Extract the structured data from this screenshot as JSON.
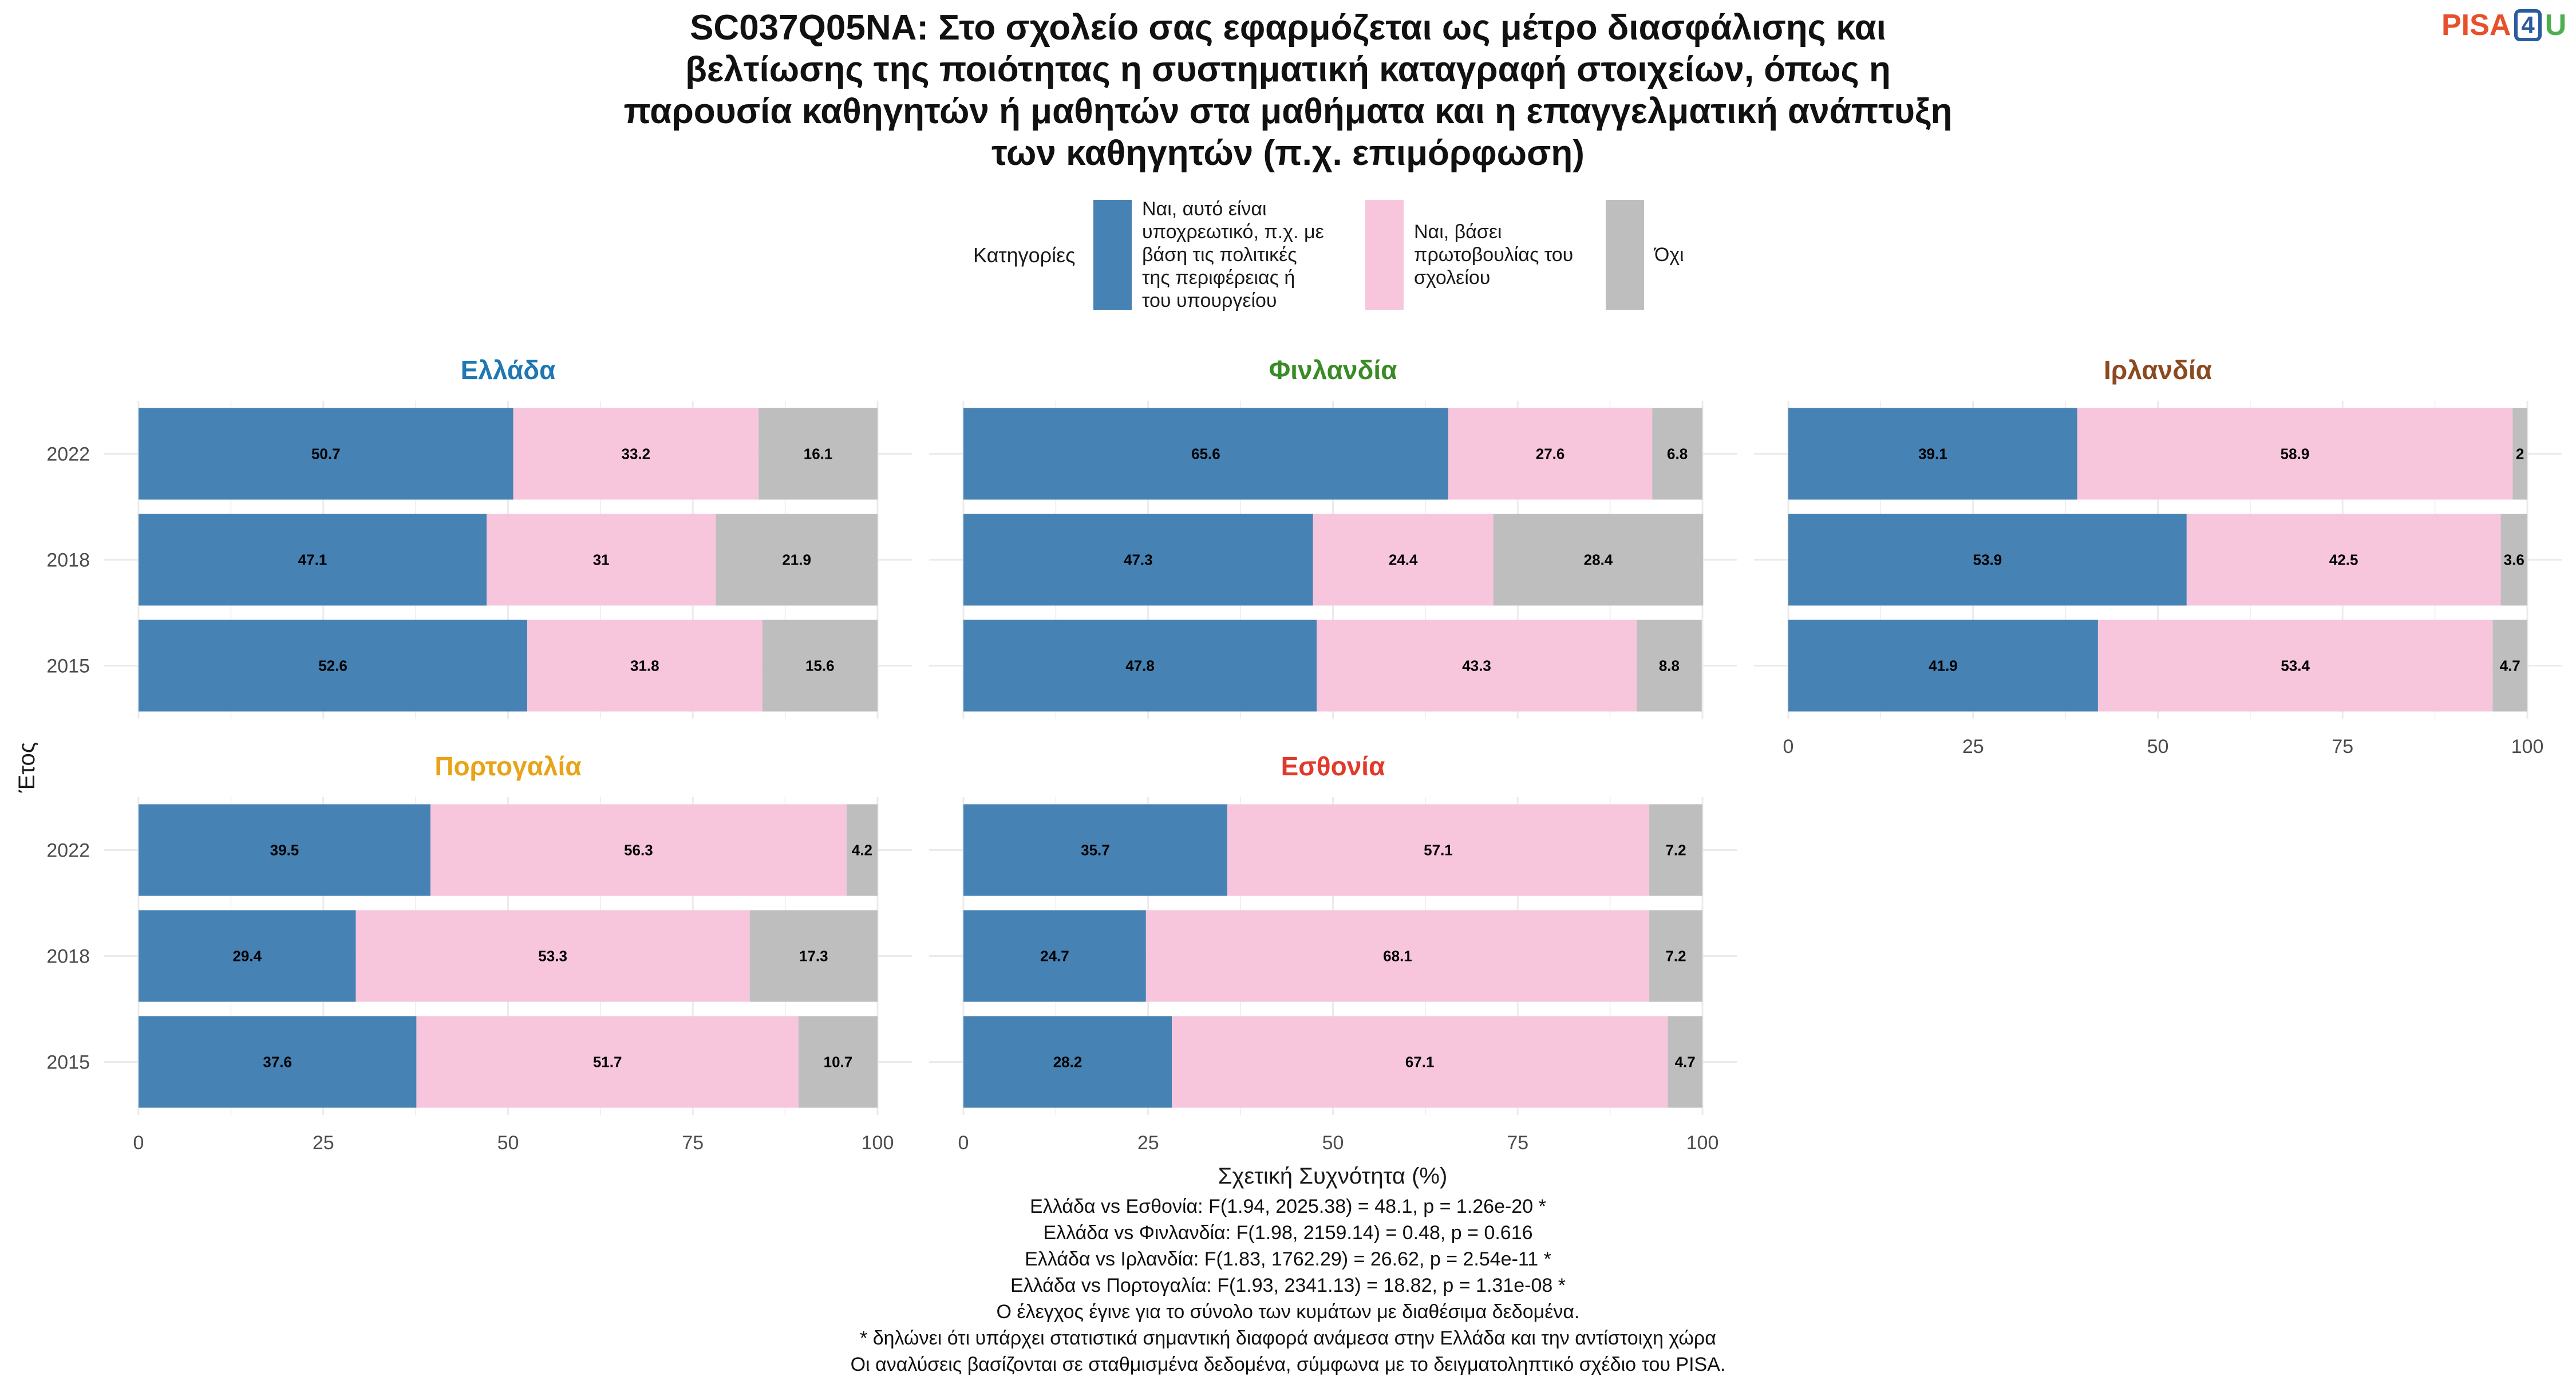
{
  "title_lines": [
    "SC037Q05NA: Στο σχολείο σας εφαρμόζεται ως μέτρο διασφάλισης και",
    "βελτίωσης της ποιότητας η συστηματική καταγραφή στοιχείων, όπως η",
    "παρουσία καθηγητών ή μαθητών στα μαθήματα και η επαγγελματική ανάπτυξη",
    "των καθηγητών (π.χ. επιμόρφωση)"
  ],
  "logo": {
    "part1": "PISA",
    "part2": "4",
    "part3": "U"
  },
  "legend": {
    "title": "Κατηγορίες",
    "items": [
      {
        "label": "Ναι, αυτό είναι\nυποχρεωτικό, π.χ. με\nβάση τις πολιτικές\nτης περιφέρειας ή\nτου υπουργείου",
        "color": "#4682b4"
      },
      {
        "label": "Ναι, βάσει\nπρωτοβουλίας του\nσχολείου",
        "color": "#f7c6dc"
      },
      {
        "label": "Όχι",
        "color": "#bebebe"
      }
    ]
  },
  "chart_data": {
    "type": "bar",
    "orientation": "horizontal",
    "stacked": true,
    "xlabel": "Σχετική Συχνότητα (%)",
    "ylabel": "Έτος",
    "xlim": [
      0,
      100
    ],
    "xticks": [
      0,
      25,
      50,
      75,
      100
    ],
    "categories": [
      "2022",
      "2018",
      "2015"
    ],
    "series_names": [
      "Ναι, αυτό είναι υποχρεωτικό, π.χ. με βάση τις πολιτικές της περιφέρειας ή του υπουργείου",
      "Ναι, βάσει πρωτοβουλίας του σχολείου",
      "Όχι"
    ],
    "colors": [
      "#4682b4",
      "#f7c6dc",
      "#bebebe"
    ],
    "grid": true,
    "legend_position": "top",
    "panels": [
      {
        "country": "Ελλάδα",
        "title_color": "#1f77b4",
        "values": {
          "2022": [
            50.7,
            33.2,
            16.1
          ],
          "2018": [
            47.1,
            31,
            21.9
          ],
          "2015": [
            52.6,
            31.8,
            15.6
          ]
        }
      },
      {
        "country": "Φινλανδία",
        "title_color": "#3a8a26",
        "values": {
          "2022": [
            65.6,
            27.6,
            6.8
          ],
          "2018": [
            47.3,
            24.4,
            28.4
          ],
          "2015": [
            47.8,
            43.3,
            8.8
          ]
        }
      },
      {
        "country": "Ιρλανδία",
        "title_color": "#8b4a1f",
        "values": {
          "2022": [
            39.1,
            58.9,
            2
          ],
          "2018": [
            53.9,
            42.5,
            3.6
          ],
          "2015": [
            41.9,
            53.4,
            4.7
          ]
        }
      },
      {
        "country": "Πορτογαλία",
        "title_color": "#e8a317",
        "values": {
          "2022": [
            39.5,
            56.3,
            4.2
          ],
          "2018": [
            29.4,
            53.3,
            17.3
          ],
          "2015": [
            37.6,
            51.7,
            10.7
          ]
        }
      },
      {
        "country": "Εσθονία",
        "title_color": "#e03a2c",
        "values": {
          "2022": [
            35.7,
            57.1,
            7.2
          ],
          "2018": [
            24.7,
            68.1,
            7.2
          ],
          "2015": [
            28.2,
            67.1,
            4.7
          ]
        }
      }
    ]
  },
  "footnotes": [
    "Ελλάδα vs Εσθονία: F(1.94, 2025.38) = 48.1, p = 1.26e-20 *",
    "Ελλάδα vs Φινλανδία: F(1.98, 2159.14) = 0.48, p = 0.616",
    "Ελλάδα vs Ιρλανδία: F(1.83, 1762.29) = 26.62, p = 2.54e-11 *",
    "Ελλάδα vs Πορτογαλία: F(1.93, 2341.13) = 18.82, p = 1.31e-08 *",
    "Ο έλεγχος έγινε για το σύνολο των κυμάτων με διαθέσιμα δεδομένα.",
    "* δηλώνει ότι υπάρχει στατιστικά σημαντική διαφορά ανάμεσα στην Ελλάδα και την αντίστοιχη χώρα",
    "Οι αναλύσεις βασίζονται σε σταθμισμένα δεδομένα, σύμφωνα με το δειγματοληπτικό σχέδιο του PISA."
  ]
}
